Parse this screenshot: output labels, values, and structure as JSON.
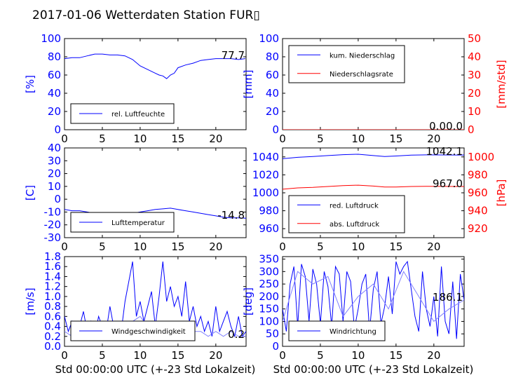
{
  "figure": {
    "title": "2017-01-06 Wetterdaten Station FUR▯",
    "colors": {
      "primary": "#0000ff",
      "secondary": "#ff0000",
      "light": "#8080ff",
      "grid": "#808080"
    }
  },
  "chart_data": [
    {
      "type": "line",
      "ylabel": "[%]",
      "xlabel": "",
      "xlim": [
        0,
        24
      ],
      "ylim": [
        0,
        100
      ],
      "xticks": [
        0,
        5,
        10,
        15,
        20
      ],
      "yticks": [
        0,
        20,
        40,
        60,
        80,
        100
      ],
      "annotation": "77.7",
      "legend": "bottom-left",
      "series": [
        {
          "name": "rel. Luftfeuchte",
          "color": "#0000ff",
          "x": [
            0,
            1,
            2,
            3,
            4,
            5,
            6,
            7,
            8,
            9,
            10,
            11,
            12,
            12.5,
            13,
            13.5,
            14,
            14.5,
            15,
            16,
            17,
            18,
            19,
            20,
            21,
            22,
            23,
            23.9
          ],
          "y": [
            78,
            79,
            79,
            81,
            83,
            83,
            82,
            82,
            81,
            77,
            70,
            66,
            62,
            60,
            59,
            56,
            60,
            62,
            68,
            71,
            73,
            76,
            77,
            78,
            78,
            78,
            77,
            78
          ]
        }
      ]
    },
    {
      "type": "line",
      "ylabel": "[mm]",
      "y2label": "[mm/std]",
      "xlabel": "",
      "xlim": [
        0,
        24
      ],
      "ylim": [
        0,
        100
      ],
      "y2lim": [
        0,
        50
      ],
      "xticks": [
        0,
        5,
        10,
        15,
        20
      ],
      "yticks": [
        0,
        20,
        40,
        60,
        80,
        100
      ],
      "y2ticks": [
        0,
        10,
        20,
        30,
        40,
        50
      ],
      "annotation": "0.0",
      "annotation2": "0.0",
      "legend": "top-left",
      "series": [
        {
          "name": "kum. Niederschlag",
          "color": "#0000ff",
          "axis": "left",
          "x": [
            0,
            6,
            12,
            18,
            24
          ],
          "y": [
            0,
            0,
            0,
            0,
            0
          ]
        },
        {
          "name": "Niederschlagsrate",
          "color": "#ff0000",
          "axis": "right",
          "x": [
            0,
            6,
            12,
            18,
            24
          ],
          "y": [
            0,
            0,
            0,
            0,
            0
          ]
        }
      ]
    },
    {
      "type": "line",
      "ylabel": "[C]",
      "xlabel": "",
      "xlim": [
        0,
        24
      ],
      "ylim": [
        -30,
        40
      ],
      "xticks": [
        0,
        5,
        10,
        15,
        20
      ],
      "yticks": [
        -30,
        -20,
        -10,
        0,
        10,
        20,
        30,
        40
      ],
      "annotation": "-14.8",
      "legend": "bottom-left",
      "series": [
        {
          "name": "Lufttemperatur",
          "color": "#0000ff",
          "x": [
            0,
            1,
            2,
            3,
            4,
            5,
            6,
            7,
            8,
            9,
            10,
            11,
            12,
            13,
            14,
            15,
            16,
            17,
            18,
            19,
            20,
            21,
            22,
            23,
            24
          ],
          "y": [
            -8,
            -9,
            -9,
            -10,
            -11,
            -11.5,
            -12,
            -11.5,
            -11,
            -11,
            -10,
            -9,
            -8,
            -7.5,
            -7,
            -8,
            -9,
            -10,
            -11,
            -12,
            -13,
            -14,
            -14.5,
            -14.5,
            -14.8
          ]
        }
      ]
    },
    {
      "type": "line",
      "ylabel": "",
      "y2label": "[hPa]",
      "xlabel": "",
      "xlim": [
        0,
        24
      ],
      "ylim": [
        950,
        1050
      ],
      "y2lim": [
        910,
        1010
      ],
      "xticks": [
        0,
        5,
        10,
        15,
        20
      ],
      "yticks": [
        960,
        980,
        1000,
        1020,
        1040
      ],
      "y2ticks": [
        920,
        940,
        960,
        980,
        1000
      ],
      "annotation": "1042.1",
      "annotation2": "967.0",
      "legend": "bottom-left",
      "series": [
        {
          "name": "red. Luftdruck",
          "color": "#0000ff",
          "axis": "left",
          "x": [
            0,
            2,
            4,
            6,
            8,
            10,
            12,
            13.5,
            15,
            17,
            19,
            21,
            23,
            24
          ],
          "y": [
            1038,
            1039.5,
            1040.5,
            1041.5,
            1042.5,
            1043,
            1041.5,
            1040.5,
            1041,
            1042,
            1042.3,
            1042.2,
            1042.1,
            1042.1
          ]
        },
        {
          "name": "abs. Luftdruck",
          "color": "#ff0000",
          "axis": "right",
          "x": [
            0,
            2,
            4,
            6,
            8,
            10,
            12,
            13.5,
            15,
            17,
            19,
            21,
            23,
            24
          ],
          "y": [
            964,
            965.5,
            966,
            967,
            968,
            968.5,
            967.5,
            966.5,
            966.5,
            967,
            967.2,
            967.1,
            967,
            967
          ]
        }
      ]
    },
    {
      "type": "line",
      "ylabel": "[m/s]",
      "xlabel": "Std 00:00:00 UTC (+-23 Std Lokalzeit)",
      "xlim": [
        0,
        24
      ],
      "ylim": [
        0,
        1.8
      ],
      "xticks": [
        0,
        5,
        10,
        15,
        20
      ],
      "yticks": [
        0.0,
        0.2,
        0.4,
        0.6,
        0.8,
        1.0,
        1.2,
        1.4,
        1.6,
        1.8
      ],
      "annotation": "0.2",
      "legend": "bottom-center",
      "series": [
        {
          "name": "Windgeschwindigkeit",
          "color": "#0000ff",
          "x": [
            0,
            0.5,
            1,
            1.5,
            2,
            2.5,
            3,
            3.5,
            4,
            4.5,
            5,
            5.5,
            6,
            6.5,
            7,
            7.5,
            8,
            8.5,
            9,
            9.5,
            10,
            10.5,
            11,
            11.5,
            12,
            12.5,
            13,
            13.5,
            14,
            14.5,
            15,
            15.5,
            16,
            16.5,
            17,
            17.5,
            18,
            18.5,
            19,
            19.5,
            20,
            20.5,
            21,
            21.5,
            22,
            22.5,
            23,
            23.5,
            24
          ],
          "y": [
            0.6,
            0.3,
            0.5,
            0.2,
            0.4,
            0.7,
            0.3,
            0.5,
            0.2,
            0.6,
            0.4,
            0.3,
            0.8,
            0.4,
            0.5,
            0.3,
            0.9,
            1.3,
            1.7,
            0.6,
            0.9,
            0.5,
            0.8,
            1.1,
            0.4,
            1.0,
            1.7,
            0.9,
            1.2,
            0.8,
            1.0,
            0.6,
            1.3,
            0.5,
            0.8,
            0.4,
            0.6,
            0.3,
            0.5,
            0.2,
            0.8,
            0.3,
            0.5,
            0.7,
            0.4,
            0.2,
            0.6,
            0.2,
            0.3
          ]
        },
        {
          "name": "",
          "color": "#8080ff",
          "x": [
            0,
            1,
            2,
            3,
            4,
            5,
            6,
            7,
            8,
            9,
            10,
            11,
            12,
            13,
            14,
            15,
            16,
            17,
            18,
            19,
            20,
            21,
            22,
            23,
            24
          ],
          "y": [
            0.3,
            0.2,
            0.3,
            0.2,
            0.3,
            0.2,
            0.4,
            0.3,
            0.2,
            0.5,
            0.6,
            0.4,
            0.3,
            0.5,
            0.4,
            0.3,
            0.5,
            0.3,
            0.3,
            0.2,
            0.3,
            0.2,
            0.3,
            0.2,
            0.2
          ]
        }
      ]
    },
    {
      "type": "line",
      "ylabel": "[deg]",
      "xlabel": "Std 00:00:00 UTC (+-23 Std Lokalzeit)",
      "xlim": [
        0,
        24
      ],
      "ylim": [
        0,
        360
      ],
      "xticks": [
        0,
        5,
        10,
        15,
        20
      ],
      "yticks": [
        0,
        50,
        100,
        150,
        200,
        250,
        300,
        350
      ],
      "annotation": "186.1",
      "legend": "bottom-left",
      "series": [
        {
          "name": "Windrichtung",
          "color": "#0000ff",
          "x": [
            0,
            0.5,
            1,
            1.5,
            2,
            2.5,
            3,
            3.5,
            4,
            4.5,
            5,
            5.5,
            6,
            6.5,
            7,
            7.5,
            8,
            8.5,
            9,
            9.5,
            10,
            10.5,
            11,
            11.5,
            12,
            12.5,
            13,
            13.5,
            14,
            14.5,
            15,
            15.5,
            16,
            16.5,
            17,
            17.5,
            18,
            18.5,
            19,
            19.5,
            20,
            20.5,
            21,
            21.5,
            22,
            22.5,
            23,
            23.5,
            24
          ],
          "y": [
            150,
            60,
            250,
            320,
            80,
            330,
            280,
            100,
            310,
            250,
            90,
            300,
            240,
            80,
            320,
            290,
            100,
            300,
            260,
            70,
            150,
            250,
            290,
            60,
            230,
            300,
            90,
            160,
            280,
            130,
            340,
            290,
            320,
            340,
            230,
            120,
            60,
            300,
            150,
            80,
            200,
            40,
            320,
            100,
            50,
            260,
            30,
            290,
            186
          ]
        },
        {
          "name": "",
          "color": "#8080ff",
          "x": [
            0,
            2,
            4,
            6,
            8,
            10,
            12,
            14,
            16,
            18,
            20,
            22,
            24
          ],
          "y": [
            100,
            300,
            250,
            280,
            120,
            200,
            250,
            150,
            300,
            200,
            100,
            150,
            186
          ]
        }
      ]
    }
  ]
}
